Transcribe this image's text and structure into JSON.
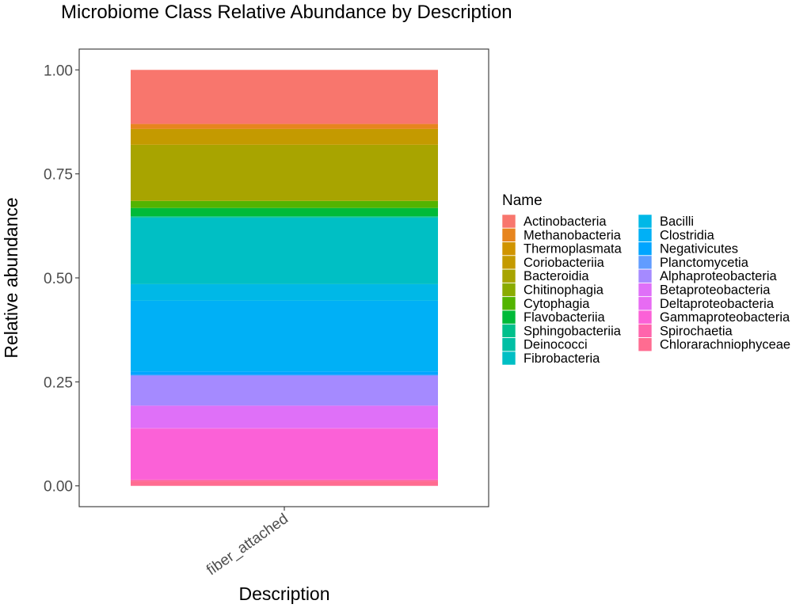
{
  "chart_data": {
    "type": "bar",
    "stacked": true,
    "title": "Microbiome Class Relative Abundance by Description",
    "xlabel": "Description",
    "ylabel": "Relative abundance",
    "categories": [
      "fiber_attached"
    ],
    "ylim": [
      -0.05,
      1.05
    ],
    "yticks": [
      "0.00",
      "0.25",
      "0.50",
      "0.75",
      "1.00"
    ],
    "grid": false,
    "legend_title": "Name",
    "legend_position": "right",
    "series": [
      {
        "name": "Actinobacteria",
        "color": "#F8766D",
        "values": [
          0.13
        ]
      },
      {
        "name": "Methanobacteria",
        "color": "#E7851E",
        "values": [
          0.012
        ]
      },
      {
        "name": "Thermoplasmata",
        "color": "#D09400",
        "values": [
          0.0
        ]
      },
      {
        "name": "Coriobacteriia",
        "color": "#C49A00",
        "values": [
          0.038
        ]
      },
      {
        "name": "Bacteroidia",
        "color": "#A8A400",
        "values": [
          0.135
        ]
      },
      {
        "name": "Chitinophagia",
        "color": "#8AAB00",
        "values": [
          0.0
        ]
      },
      {
        "name": "Cytophagia",
        "color": "#53B400",
        "values": [
          0.017
        ]
      },
      {
        "name": "Flavobacteriia",
        "color": "#00BA38",
        "values": [
          0.02
        ]
      },
      {
        "name": "Sphingobacteriia",
        "color": "#00C08B",
        "values": [
          0.003
        ]
      },
      {
        "name": "Deinococci",
        "color": "#00BFA4",
        "values": [
          0.0
        ]
      },
      {
        "name": "Fibrobacteria",
        "color": "#00BFC4",
        "values": [
          0.16
        ]
      },
      {
        "name": "Bacilli",
        "color": "#00B8E7",
        "values": [
          0.04
        ]
      },
      {
        "name": "Clostridia",
        "color": "#00B0F6",
        "values": [
          0.17
        ]
      },
      {
        "name": "Negativicutes",
        "color": "#00A5FF",
        "values": [
          0.008
        ]
      },
      {
        "name": "Planctomycetia",
        "color": "#619CFF",
        "values": [
          0.002
        ]
      },
      {
        "name": "Alphaproteobacteria",
        "color": "#A58AFF",
        "values": [
          0.072
        ]
      },
      {
        "name": "Betaproteobacteria",
        "color": "#DF70F8",
        "values": [
          0.053
        ]
      },
      {
        "name": "Deltaproteobacteria",
        "color": "#E76BF3",
        "values": [
          0.002
        ]
      },
      {
        "name": "Gammaproteobacteria",
        "color": "#FB61D7",
        "values": [
          0.123
        ]
      },
      {
        "name": "Spirochaetia",
        "color": "#FF65AC",
        "values": [
          0.003
        ]
      },
      {
        "name": "Chlorarachniophyceae",
        "color": "#FF6C91",
        "values": [
          0.012
        ]
      }
    ]
  }
}
